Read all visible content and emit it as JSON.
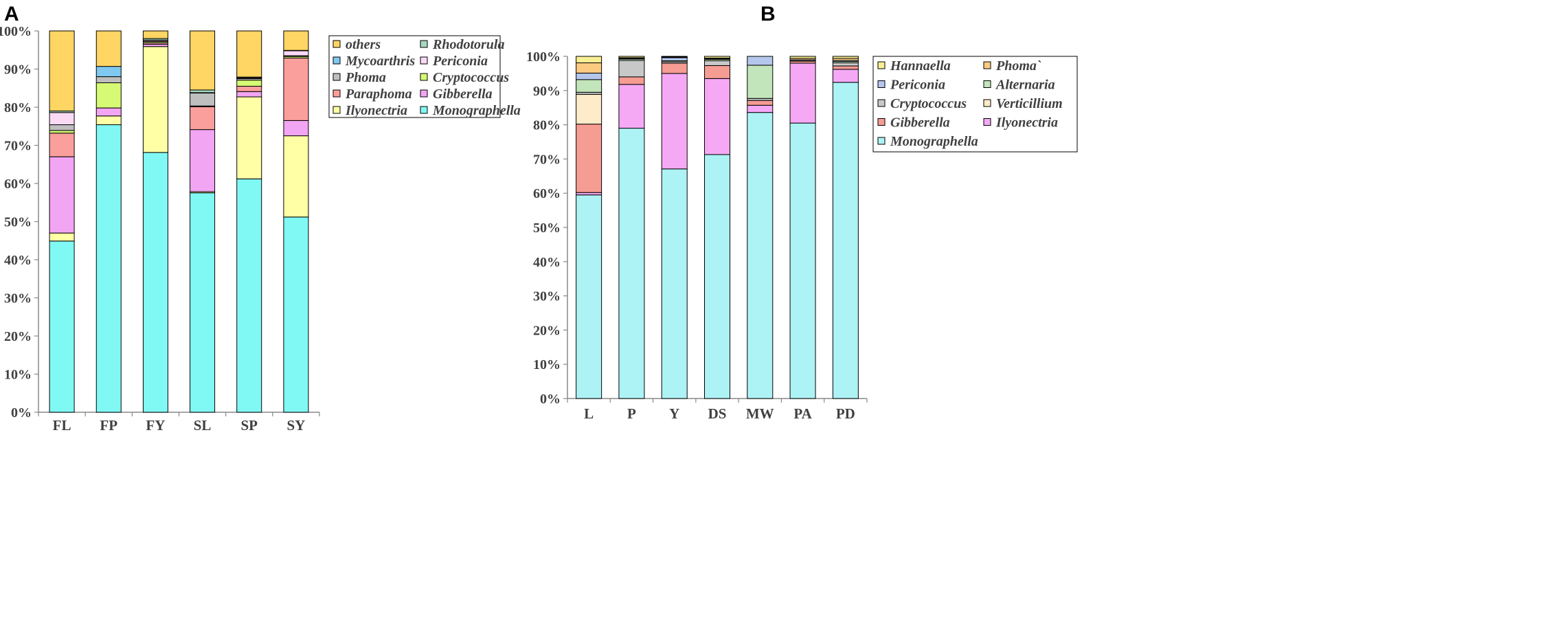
{
  "figure": {
    "panels": [
      "A",
      "B"
    ]
  },
  "chart_data": [
    {
      "panel": "A",
      "type": "bar",
      "stacked": true,
      "ylim": [
        0,
        100
      ],
      "yticks": [
        "0%",
        "10%",
        "20%",
        "30%",
        "40%",
        "50%",
        "60%",
        "70%",
        "80%",
        "90%",
        "100%"
      ],
      "categories": [
        "FL",
        "FP",
        "FY",
        "SL",
        "SP",
        "SY"
      ],
      "series": [
        {
          "name": "Monographella",
          "color": "#80F8F4",
          "values": [
            44.9,
            75.4,
            68.2,
            57.6,
            61.2,
            51.2
          ]
        },
        {
          "name": "Ilyonectria",
          "color": "#FFFFA6",
          "values": [
            2.1,
            2.3,
            27.8,
            0.3,
            21.5,
            21.3
          ]
        },
        {
          "name": "Gibberella",
          "color": "#F2A5F2",
          "values": [
            20.0,
            2.1,
            0.6,
            16.3,
            1.4,
            4.0
          ]
        },
        {
          "name": "Paraphoma",
          "color": "#FA9F9C",
          "values": [
            6.2,
            0.0,
            0.4,
            6.0,
            1.4,
            16.4
          ]
        },
        {
          "name": "Cryptococcus",
          "color": "#D6FA73",
          "values": [
            0.7,
            6.6,
            0.3,
            0.2,
            1.6,
            0.4
          ]
        },
        {
          "name": "Phoma",
          "color": "#BFBFBF",
          "values": [
            1.5,
            1.6,
            0.1,
            3.4,
            0.4,
            0.2
          ]
        },
        {
          "name": "Periconia",
          "color": "#FAD9F5",
          "values": [
            3.2,
            0.0,
            0.3,
            0.1,
            0.2,
            1.3
          ]
        },
        {
          "name": "Mycoarthris",
          "color": "#7FC8F0",
          "values": [
            0.0,
            2.7,
            0.0,
            0.0,
            0.0,
            0.0
          ]
        },
        {
          "name": "Rhodotorula",
          "color": "#A8D8C0",
          "values": [
            0.4,
            0.0,
            0.4,
            0.7,
            0.2,
            0.1
          ]
        },
        {
          "name": "others",
          "color": "#FFD563",
          "values": [
            21.0,
            9.3,
            2.0,
            15.5,
            12.1,
            5.1
          ]
        }
      ],
      "legend": {
        "position": "right",
        "rows": [
          [
            "others",
            "Rhodotorula"
          ],
          [
            "Mycoarthris",
            "Periconia"
          ],
          [
            "Phoma",
            "Cryptococcus"
          ],
          [
            "Paraphoma",
            "Gibberella"
          ],
          [
            "Ilyonectria",
            "Monographella"
          ]
        ]
      }
    },
    {
      "panel": "B",
      "type": "bar",
      "stacked": true,
      "ylim": [
        0,
        100
      ],
      "yticks": [
        "0%",
        "10%",
        "20%",
        "30%",
        "40%",
        "50%",
        "60%",
        "70%",
        "80%",
        "90%",
        "100%"
      ],
      "categories": [
        "L",
        "P",
        "Y",
        "DS",
        "MW",
        "PA",
        "PD"
      ],
      "series": [
        {
          "name": "Monographella",
          "color": "#ADF2F5",
          "values": [
            59.5,
            79.0,
            67.1,
            71.3,
            83.6,
            80.5,
            92.4
          ]
        },
        {
          "name": "Ilyonectria",
          "color": "#F5A9F5",
          "values": [
            0.7,
            12.8,
            27.9,
            22.2,
            2.1,
            17.5,
            3.8
          ]
        },
        {
          "name": "Gibberella",
          "color": "#F59C93",
          "values": [
            20.0,
            2.2,
            3.0,
            3.8,
            1.4,
            0.6,
            1.0
          ]
        },
        {
          "name": "Verticillium",
          "color": "#FEEBC9",
          "values": [
            8.7,
            0.0,
            0.0,
            0.0,
            0.0,
            0.0,
            0.0
          ]
        },
        {
          "name": "Cryptococcus",
          "color": "#C8C8C8",
          "values": [
            0.6,
            4.8,
            0.4,
            1.4,
            0.6,
            0.1,
            0.9
          ]
        },
        {
          "name": "Alternaria",
          "color": "#C3E5BB",
          "values": [
            3.7,
            0.4,
            0.3,
            0.4,
            9.7,
            0.0,
            0.4
          ]
        },
        {
          "name": "Periconia",
          "color": "#B4C6EC",
          "values": [
            1.9,
            0.2,
            0.9,
            0.2,
            2.6,
            0.3,
            0.3
          ]
        },
        {
          "name": "Phoma`",
          "color": "#FCCB81",
          "values": [
            3.0,
            0.2,
            0.2,
            0.2,
            0.0,
            0.4,
            0.6
          ]
        },
        {
          "name": "Hannaella",
          "color": "#F8EE92",
          "values": [
            1.9,
            0.4,
            0.2,
            0.5,
            0.0,
            0.6,
            0.6
          ]
        }
      ],
      "legend": {
        "position": "right",
        "rows": [
          [
            "Hannaella",
            "Phoma`"
          ],
          [
            "Periconia",
            "Alternaria"
          ],
          [
            "Cryptococcus",
            "Verticillium"
          ],
          [
            "Gibberella",
            "Ilyonectria"
          ],
          [
            "Monographella"
          ]
        ]
      }
    }
  ]
}
